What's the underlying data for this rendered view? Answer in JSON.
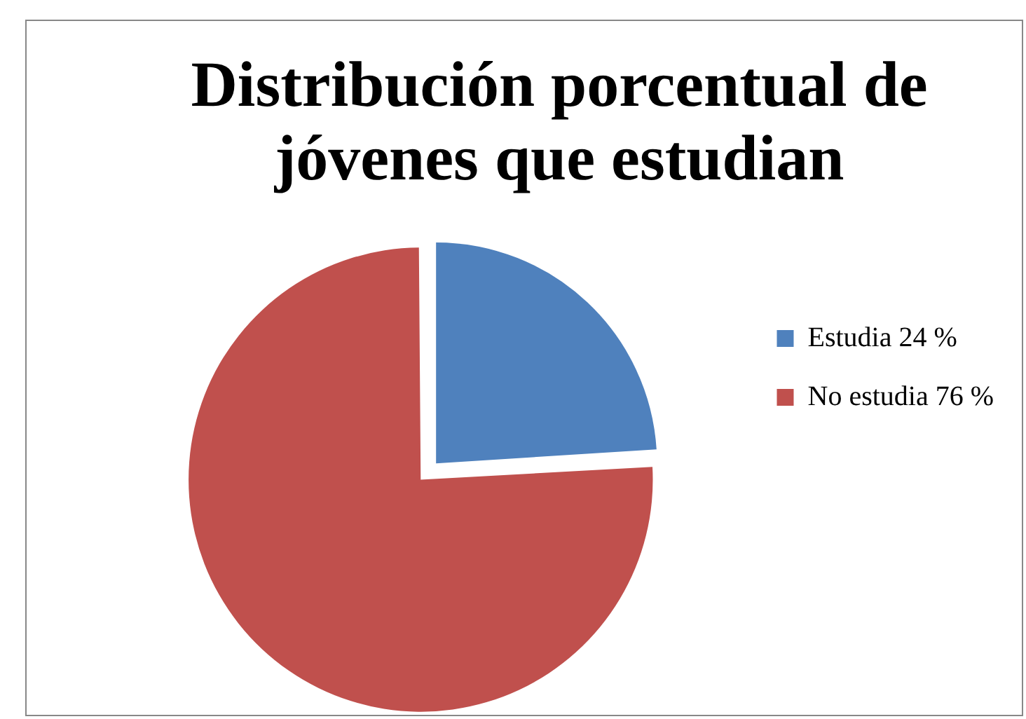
{
  "chart_data": {
    "type": "pie",
    "title": "Distribución porcentual de jóvenes que estudian",
    "categories": [
      "Estudia 24 %",
      "No estudia 76 %"
    ],
    "values": [
      24,
      76
    ],
    "colors": [
      "#4f81bd",
      "#c0504d"
    ],
    "legend": "right"
  }
}
